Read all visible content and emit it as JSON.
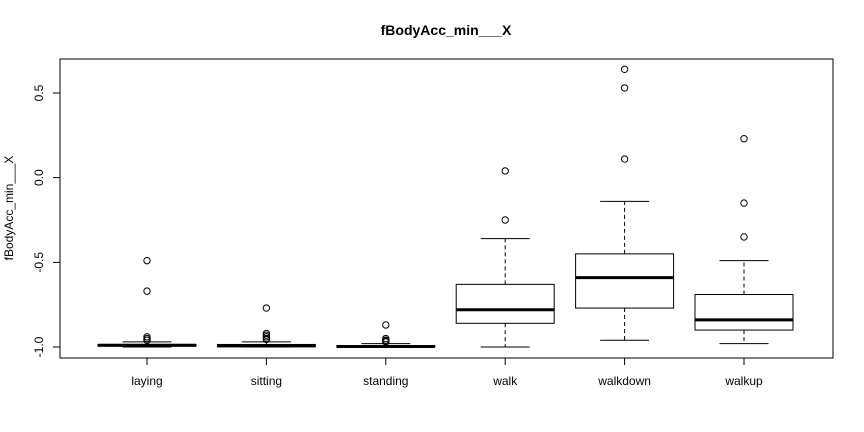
{
  "chart_data": {
    "type": "box",
    "title": "fBodyAcc_min___X",
    "xlabel": "",
    "ylabel": "fBodyAcc_min___X",
    "ylim": [
      -1.05,
      0.7
    ],
    "yticks": [
      -1.0,
      -0.5,
      0.0,
      0.5
    ],
    "ytick_labels": [
      "-1.0",
      "-0.5",
      "0.0",
      "0.5"
    ],
    "categories": [
      "laying",
      "sitting",
      "standing",
      "walk",
      "walkdown",
      "walkup"
    ],
    "boxes": [
      {
        "category": "laying",
        "whisker_low": -1.0,
        "q1": -0.995,
        "median": -0.99,
        "q3": -0.985,
        "whisker_high": -0.97,
        "outliers": [
          -0.49,
          -0.67,
          -0.94,
          -0.95,
          -0.96
        ]
      },
      {
        "category": "sitting",
        "whisker_low": -1.0,
        "q1": -0.998,
        "median": -0.993,
        "q3": -0.985,
        "whisker_high": -0.97,
        "outliers": [
          -0.77,
          -0.92,
          -0.93,
          -0.94,
          -0.95,
          -0.955
        ]
      },
      {
        "category": "standing",
        "whisker_low": -1.0,
        "q1": -0.999,
        "median": -0.997,
        "q3": -0.992,
        "whisker_high": -0.98,
        "outliers": [
          -0.87,
          -0.95,
          -0.96,
          -0.965,
          -0.97
        ]
      },
      {
        "category": "walk",
        "whisker_low": -1.0,
        "q1": -0.86,
        "median": -0.78,
        "q3": -0.63,
        "whisker_high": -0.36,
        "outliers": [
          0.04,
          -0.25
        ]
      },
      {
        "category": "walkdown",
        "whisker_low": -0.96,
        "q1": -0.77,
        "median": -0.59,
        "q3": -0.45,
        "whisker_high": -0.14,
        "outliers": [
          0.64,
          0.53,
          0.11
        ]
      },
      {
        "category": "walkup",
        "whisker_low": -0.98,
        "q1": -0.9,
        "median": -0.84,
        "q3": -0.69,
        "whisker_high": -0.49,
        "outliers": [
          0.23,
          -0.15,
          -0.35
        ]
      }
    ]
  }
}
